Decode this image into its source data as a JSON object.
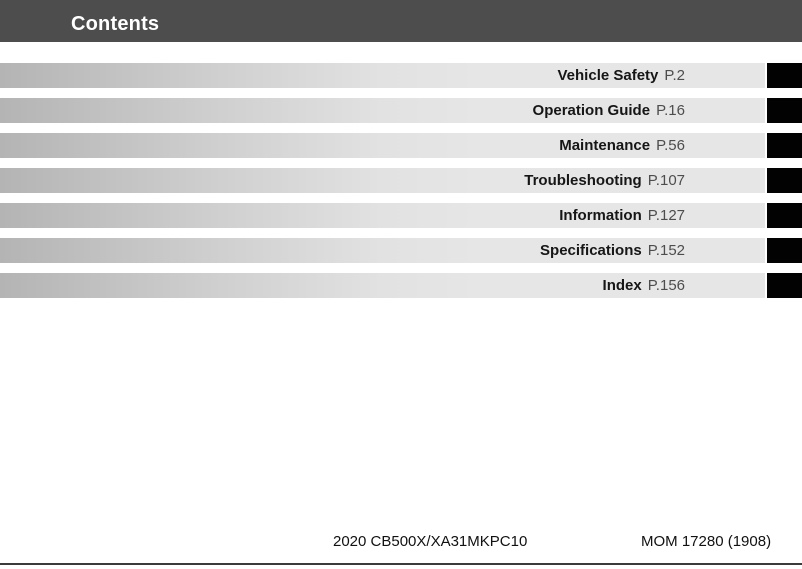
{
  "header": {
    "title": "Contents"
  },
  "toc": {
    "items": [
      {
        "label": "Vehicle Safety",
        "page": "P.2"
      },
      {
        "label": "Operation Guide",
        "page": "P.16"
      },
      {
        "label": "Maintenance",
        "page": "P.56"
      },
      {
        "label": "Troubleshooting",
        "page": "P.107"
      },
      {
        "label": "Information",
        "page": "P.127"
      },
      {
        "label": "Specifications",
        "page": "P.152"
      },
      {
        "label": "Index",
        "page": "P.156"
      }
    ]
  },
  "footer": {
    "model_code": "2020 CB500X/XA31MKPC10",
    "print_code": "MOM 17280 (1908)"
  },
  "colors": {
    "header_bg": "#4d4d4d",
    "bar_gradient_start": "#b4b4b4",
    "bar_gradient_end": "#e6e6e6",
    "tab": "#020202",
    "page_ref": "#4d4d4d"
  }
}
